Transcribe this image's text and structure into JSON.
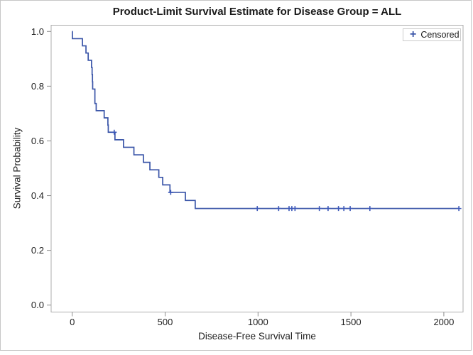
{
  "chart_data": {
    "type": "step",
    "subtype": "kaplan-meier-survival",
    "title": "Product-Limit Survival Estimate for Disease Group = ALL",
    "xlabel": "Disease-Free Survival Time",
    "ylabel": "Survival Probability",
    "x_ticks": [
      0,
      500,
      1000,
      1500,
      2000
    ],
    "x_tick_labels": [
      "0",
      "500",
      "1000",
      "1500",
      "2000"
    ],
    "y_ticks": [
      0.0,
      0.2,
      0.4,
      0.6,
      0.8,
      1.0
    ],
    "y_tick_labels": [
      "0.0",
      "0.2",
      "0.4",
      "0.6",
      "0.8",
      "1.0"
    ],
    "xlim": [
      -113.5,
      2103.5
    ],
    "ylim": [
      -0.0254,
      1.0228
    ],
    "grid": false,
    "legend": {
      "marker": "+",
      "label": "Censored",
      "position": "top-right-inside"
    },
    "survival_steps": [
      {
        "t": 0,
        "s": 1.0
      },
      {
        "t": 1,
        "s": 0.9737
      },
      {
        "t": 55,
        "s": 0.9474
      },
      {
        "t": 74,
        "s": 0.9211
      },
      {
        "t": 86,
        "s": 0.8947
      },
      {
        "t": 104,
        "s": 0.8684
      },
      {
        "t": 107,
        "s": 0.8421
      },
      {
        "t": 109,
        "s": 0.8158
      },
      {
        "t": 110,
        "s": 0.7895
      },
      {
        "t": 122,
        "s": 0.7368
      },
      {
        "t": 129,
        "s": 0.7105
      },
      {
        "t": 172,
        "s": 0.6842
      },
      {
        "t": 192,
        "s": 0.6579
      },
      {
        "t": 194,
        "s": 0.6316
      },
      {
        "t": 230,
        "s": 0.6041
      },
      {
        "t": 276,
        "s": 0.5767
      },
      {
        "t": 332,
        "s": 0.5492
      },
      {
        "t": 383,
        "s": 0.5217
      },
      {
        "t": 418,
        "s": 0.4943
      },
      {
        "t": 466,
        "s": 0.4668
      },
      {
        "t": 487,
        "s": 0.4394
      },
      {
        "t": 526,
        "s": 0.4119
      },
      {
        "t": 609,
        "s": 0.3825
      },
      {
        "t": 662,
        "s": 0.3531
      }
    ],
    "end_time": 2081,
    "censored": [
      {
        "t": 226,
        "s": 0.6316
      },
      {
        "t": 530,
        "s": 0.4119
      },
      {
        "t": 996,
        "s": 0.3531
      },
      {
        "t": 1111,
        "s": 0.3531
      },
      {
        "t": 1167,
        "s": 0.3531
      },
      {
        "t": 1182,
        "s": 0.3531
      },
      {
        "t": 1199,
        "s": 0.3531
      },
      {
        "t": 1330,
        "s": 0.3531
      },
      {
        "t": 1377,
        "s": 0.3531
      },
      {
        "t": 1433,
        "s": 0.3531
      },
      {
        "t": 1462,
        "s": 0.3531
      },
      {
        "t": 1496,
        "s": 0.3531
      },
      {
        "t": 1602,
        "s": 0.3531
      },
      {
        "t": 2081,
        "s": 0.3531
      }
    ],
    "colors": {
      "line": "#3A55A8",
      "marker": "#3C58B8",
      "frame": "#ADADAD",
      "tick": "#8C8C8C",
      "text": "#1F1F1F",
      "legend_border": "#CCCCCC",
      "figure_border": "#C6C6C6",
      "background": "#FFFFFF"
    }
  }
}
